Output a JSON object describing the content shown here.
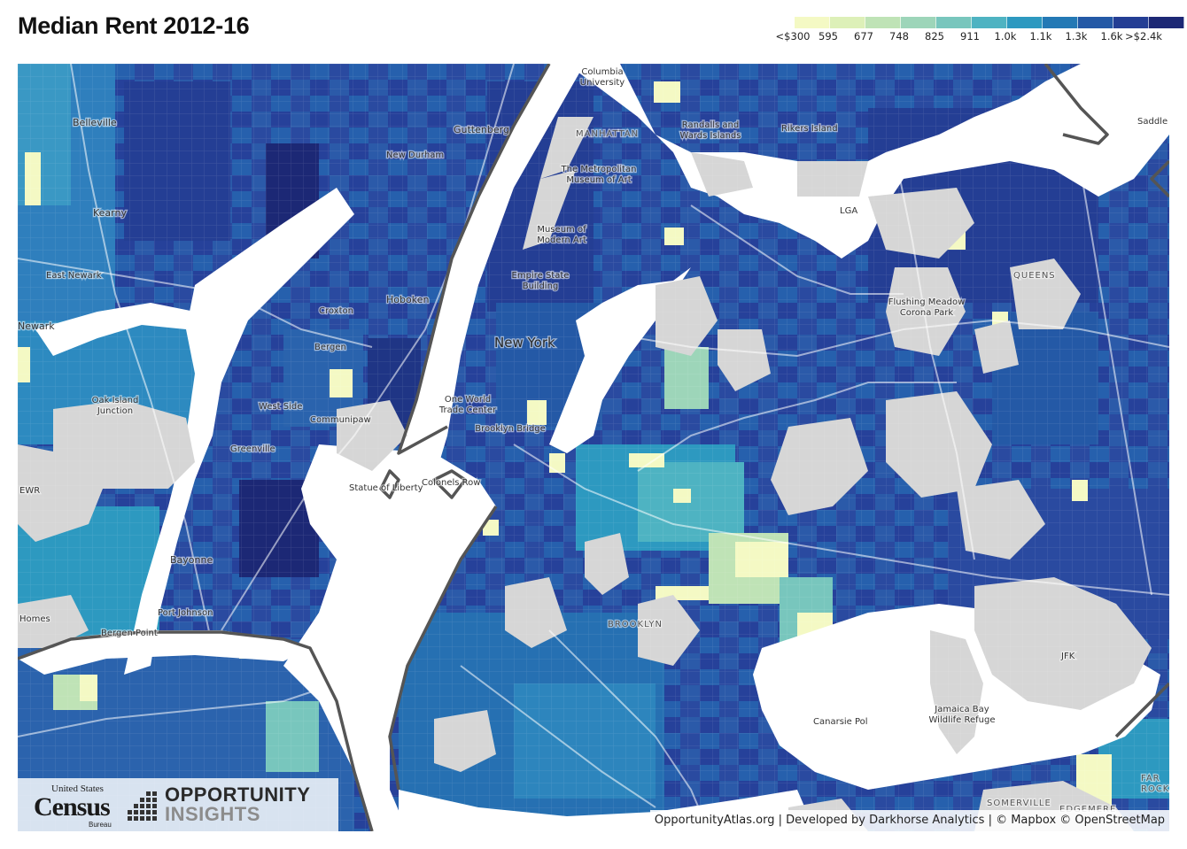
{
  "title": "Median Rent 2012-16",
  "legend": {
    "labels": [
      "<$300",
      "595",
      "677",
      "748",
      "825",
      "911",
      "1.0k",
      "1.1k",
      "1.3k",
      "1.6k",
      ">$2.4k"
    ],
    "colors": [
      "#f4f9c4",
      "#ddf0b8",
      "#bfe3b6",
      "#9dd5b9",
      "#78c6bd",
      "#4eb3c2",
      "#2d99c0",
      "#2479b5",
      "#2459a6",
      "#243e94",
      "#1c2875"
    ]
  },
  "map": {
    "water_color": "#ffffff",
    "park_color": "#d6d6d6",
    "boundary_color": "#555555",
    "places": [
      {
        "name": "Belleville",
        "size": "med"
      },
      {
        "name": "Kearny",
        "size": "med"
      },
      {
        "name": "East Newark",
        "size": "small"
      },
      {
        "name": "Newark",
        "size": "med"
      },
      {
        "name": "Oak Island Junction",
        "size": "small"
      },
      {
        "name": "EWR",
        "size": "small"
      },
      {
        "name": "Bayonne",
        "size": "med"
      },
      {
        "name": "Port Johnson",
        "size": "small"
      },
      {
        "name": "Bergen Point",
        "size": "small"
      },
      {
        "name": "Homes",
        "size": "small"
      },
      {
        "name": "Guttenberg",
        "size": "med"
      },
      {
        "name": "New Durham",
        "size": "small"
      },
      {
        "name": "Hoboken",
        "size": "med"
      },
      {
        "name": "Croxton",
        "size": "small"
      },
      {
        "name": "Bergen",
        "size": "small"
      },
      {
        "name": "West Side",
        "size": "small"
      },
      {
        "name": "Communipaw",
        "size": "small"
      },
      {
        "name": "Greenville",
        "size": "small"
      },
      {
        "name": "Statue of Liberty",
        "size": "small"
      },
      {
        "name": "Colonels Row",
        "size": "small"
      },
      {
        "name": "Columbia University",
        "size": "small"
      },
      {
        "name": "MANHATTAN",
        "size": "caps"
      },
      {
        "name": "The Metropolitan Museum of Art",
        "size": "small"
      },
      {
        "name": "Museum of Modern Art",
        "size": "small"
      },
      {
        "name": "Empire State Building",
        "size": "small"
      },
      {
        "name": "New York",
        "size": "big"
      },
      {
        "name": "One World Trade Center",
        "size": "small"
      },
      {
        "name": "Brooklyn Bridge",
        "size": "small"
      },
      {
        "name": "Randalls and Wards Islands",
        "size": "small"
      },
      {
        "name": "Rikers Island",
        "size": "small"
      },
      {
        "name": "LGA",
        "size": "small"
      },
      {
        "name": "QUEENS",
        "size": "caps"
      },
      {
        "name": "Flushing Meadow Corona Park",
        "size": "small"
      },
      {
        "name": "BROOKLYN",
        "size": "caps"
      },
      {
        "name": "Canarsie Pol",
        "size": "small"
      },
      {
        "name": "Jamaica Bay Wildlife Refuge",
        "size": "small"
      },
      {
        "name": "JFK",
        "size": "small"
      },
      {
        "name": "SOMERVILLE",
        "size": "caps"
      },
      {
        "name": "EDGEMERE",
        "size": "caps"
      },
      {
        "name": "FAR ROCKAWAY",
        "size": "caps"
      },
      {
        "name": "Saddle",
        "size": "small"
      }
    ]
  },
  "logos": {
    "census_top": "United States",
    "census_main": "Census",
    "census_bottom": "Bureau",
    "oi_line1": "OPPORTUNITY",
    "oi_line2": "INSIGHTS"
  },
  "attribution": "OpportunityAtlas.org | Developed by Darkhorse Analytics | © Mapbox © OpenStreetMap"
}
